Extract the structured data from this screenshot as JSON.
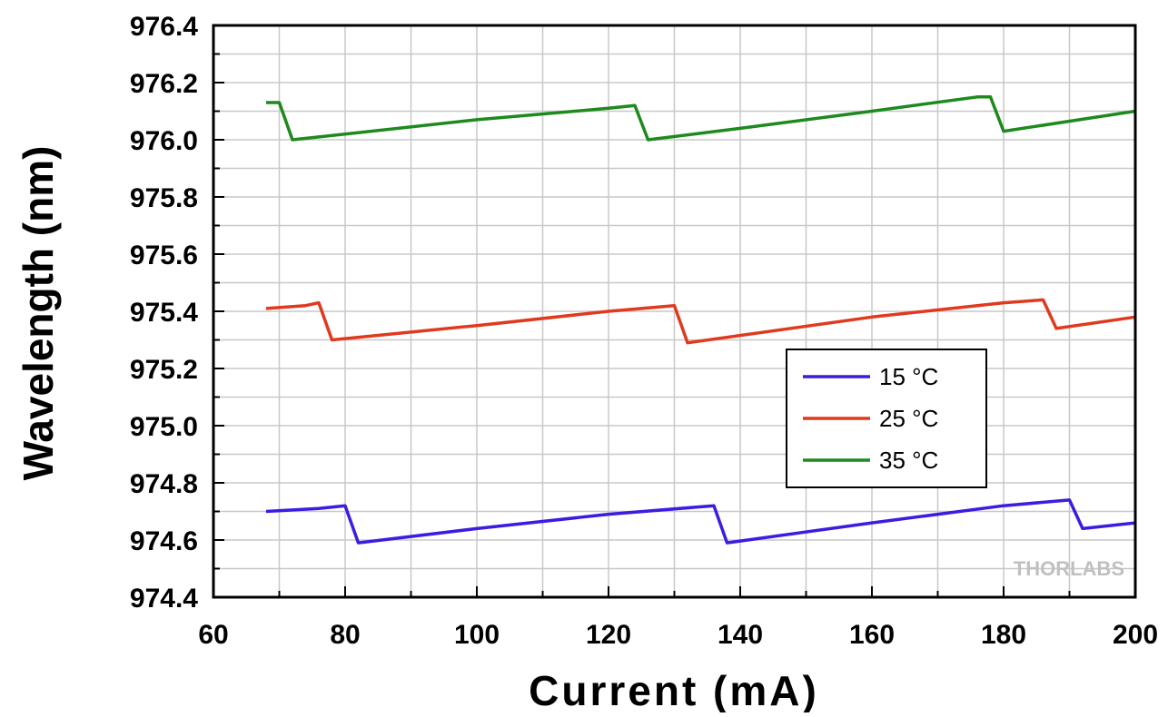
{
  "chart_data": {
    "type": "line",
    "xlabel": "Current (mA)",
    "ylabel": "Wavelength (nm)",
    "xlim": [
      60,
      200
    ],
    "ylim": [
      974.4,
      976.4
    ],
    "x_ticks": [
      "60",
      "80",
      "100",
      "120",
      "140",
      "160",
      "180",
      "200"
    ],
    "y_ticks": [
      "974.4",
      "974.6",
      "974.8",
      "975.0",
      "975.2",
      "975.4",
      "975.6",
      "975.8",
      "976.0",
      "976.2",
      "976.4"
    ],
    "grid": true,
    "legend_position": "center-right",
    "watermark": "THORLABS",
    "series": [
      {
        "name": "15 °C",
        "color": "#3a1ee0",
        "points": [
          [
            68,
            974.7
          ],
          [
            76,
            974.71
          ],
          [
            80,
            974.72
          ],
          [
            82,
            974.59
          ],
          [
            100,
            974.64
          ],
          [
            120,
            974.69
          ],
          [
            136,
            974.72
          ],
          [
            138,
            974.59
          ],
          [
            160,
            974.66
          ],
          [
            180,
            974.72
          ],
          [
            190,
            974.74
          ],
          [
            192,
            974.64
          ],
          [
            200,
            974.66
          ]
        ]
      },
      {
        "name": "25 °C",
        "color": "#e03a1e",
        "points": [
          [
            68,
            975.41
          ],
          [
            74,
            975.42
          ],
          [
            76,
            975.43
          ],
          [
            78,
            975.3
          ],
          [
            100,
            975.35
          ],
          [
            120,
            975.4
          ],
          [
            130,
            975.42
          ],
          [
            132,
            975.29
          ],
          [
            160,
            975.38
          ],
          [
            180,
            975.43
          ],
          [
            186,
            975.44
          ],
          [
            188,
            975.34
          ],
          [
            200,
            975.38
          ]
        ]
      },
      {
        "name": "35 °C",
        "color": "#1e8a1e",
        "points": [
          [
            68,
            976.13
          ],
          [
            70,
            976.13
          ],
          [
            72,
            976.0
          ],
          [
            100,
            976.07
          ],
          [
            120,
            976.11
          ],
          [
            124,
            976.12
          ],
          [
            126,
            976.0
          ],
          [
            140,
            976.04
          ],
          [
            160,
            976.1
          ],
          [
            176,
            976.15
          ],
          [
            178,
            976.15
          ],
          [
            180,
            976.03
          ],
          [
            200,
            976.1
          ]
        ]
      }
    ]
  }
}
